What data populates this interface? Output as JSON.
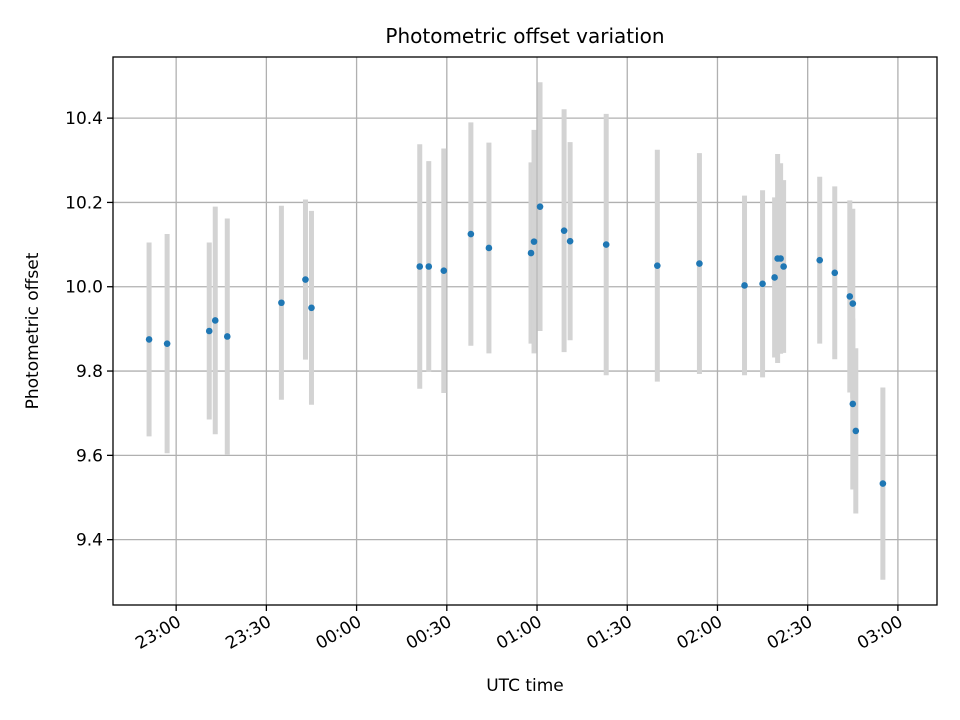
{
  "chart_data": {
    "type": "scatter",
    "title": "Photometric offset variation",
    "xlabel": "UTC time",
    "ylabel": "Photometric offset",
    "x_unit": "UTC time (hh:mm), night spanning midnight",
    "xlim": [
      "22:39",
      "03:13"
    ],
    "ylim": [
      9.245,
      10.545
    ],
    "grid": true,
    "x_ticks": [
      "23:00",
      "23:30",
      "00:00",
      "00:30",
      "01:00",
      "01:30",
      "02:00",
      "02:30",
      "03:00"
    ],
    "y_ticks": [
      "9.4",
      "9.6",
      "9.8",
      "10.0",
      "10.2",
      "10.4"
    ],
    "series": [
      {
        "style": "points with gray error bars",
        "color": "#1f77b4",
        "error_color": "#d3d3d3",
        "points": [
          {
            "x": "22:51",
            "y": 9.875,
            "err": 0.23
          },
          {
            "x": "22:57",
            "y": 9.865,
            "err": 0.26
          },
          {
            "x": "23:11",
            "y": 9.895,
            "err": 0.21
          },
          {
            "x": "23:13",
            "y": 9.92,
            "err": 0.27
          },
          {
            "x": "23:17",
            "y": 9.882,
            "err": 0.28
          },
          {
            "x": "23:35",
            "y": 9.962,
            "err": 0.23
          },
          {
            "x": "23:43",
            "y": 10.017,
            "err": 0.19
          },
          {
            "x": "23:45",
            "y": 9.95,
            "err": 0.23
          },
          {
            "x": "00:21",
            "y": 10.048,
            "err": 0.29
          },
          {
            "x": "00:24",
            "y": 10.048,
            "err": 0.25
          },
          {
            "x": "00:29",
            "y": 10.038,
            "err": 0.29
          },
          {
            "x": "00:38",
            "y": 10.125,
            "err": 0.265
          },
          {
            "x": "00:44",
            "y": 10.092,
            "err": 0.25
          },
          {
            "x": "00:58",
            "y": 10.08,
            "err": 0.215
          },
          {
            "x": "00:59",
            "y": 10.107,
            "err": 0.265
          },
          {
            "x": "01:01",
            "y": 10.19,
            "err": 0.295
          },
          {
            "x": "01:09",
            "y": 10.133,
            "err": 0.288
          },
          {
            "x": "01:11",
            "y": 10.108,
            "err": 0.235
          },
          {
            "x": "01:23",
            "y": 10.1,
            "err": 0.31
          },
          {
            "x": "01:40",
            "y": 10.05,
            "err": 0.275
          },
          {
            "x": "01:54",
            "y": 10.055,
            "err": 0.262
          },
          {
            "x": "02:09",
            "y": 10.003,
            "err": 0.213
          },
          {
            "x": "02:15",
            "y": 10.007,
            "err": 0.222
          },
          {
            "x": "02:19",
            "y": 10.022,
            "err": 0.19
          },
          {
            "x": "02:20",
            "y": 10.067,
            "err": 0.248
          },
          {
            "x": "02:21",
            "y": 10.067,
            "err": 0.226
          },
          {
            "x": "02:22",
            "y": 10.048,
            "err": 0.205
          },
          {
            "x": "02:34",
            "y": 10.063,
            "err": 0.198
          },
          {
            "x": "02:39",
            "y": 10.033,
            "err": 0.205
          },
          {
            "x": "02:44",
            "y": 9.977,
            "err": 0.228
          },
          {
            "x": "02:45",
            "y": 9.96,
            "err": 0.225
          },
          {
            "x": "02:45",
            "y": 9.722,
            "err": 0.203
          },
          {
            "x": "02:46",
            "y": 9.658,
            "err": 0.196
          },
          {
            "x": "02:55",
            "y": 9.533,
            "err": 0.228
          }
        ]
      }
    ]
  }
}
